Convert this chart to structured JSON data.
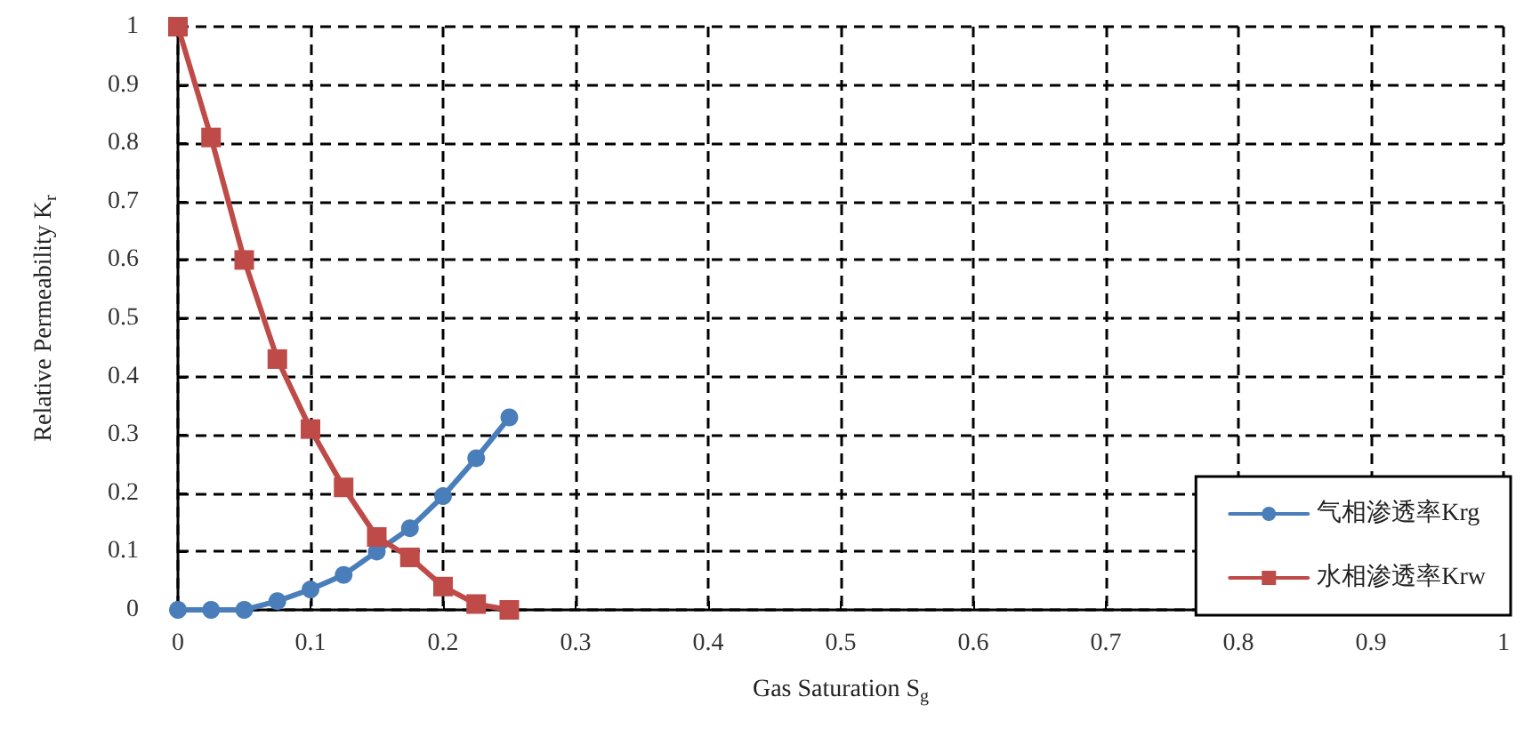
{
  "chart_data": {
    "type": "line",
    "xlabel": "Gas Saturation S$_{g}$",
    "ylabel": "Relative Permeability K$_{r}$",
    "x": [
      0,
      0.025,
      0.05,
      0.075,
      0.1,
      0.125,
      0.15,
      0.175,
      0.2,
      0.225,
      0.25
    ],
    "series": [
      {
        "name": "气相渗透率Krg",
        "color": "#4a7ebb",
        "marker": "circle",
        "values": [
          0,
          0,
          0,
          0.015,
          0.035,
          0.06,
          0.1,
          0.14,
          0.195,
          0.26,
          0.33
        ]
      },
      {
        "name": "水相渗透率Krw",
        "color": "#be4b48",
        "marker": "square",
        "values": [
          1,
          0.81,
          0.6,
          0.43,
          0.31,
          0.21,
          0.125,
          0.09,
          0.04,
          0.01,
          0
        ]
      }
    ],
    "xlim": [
      0,
      1
    ],
    "xticks": [
      0,
      0.1,
      0.2,
      0.3,
      0.4,
      0.5,
      0.6,
      0.7,
      0.8,
      0.9,
      1
    ],
    "ylim": [
      0,
      1
    ],
    "yticks": [
      0,
      0.1,
      0.2,
      0.3,
      0.4,
      0.5,
      0.6,
      0.7,
      0.8,
      0.9,
      1
    ],
    "grid": true,
    "legend": "bottom right",
    "line_style": "solid"
  }
}
